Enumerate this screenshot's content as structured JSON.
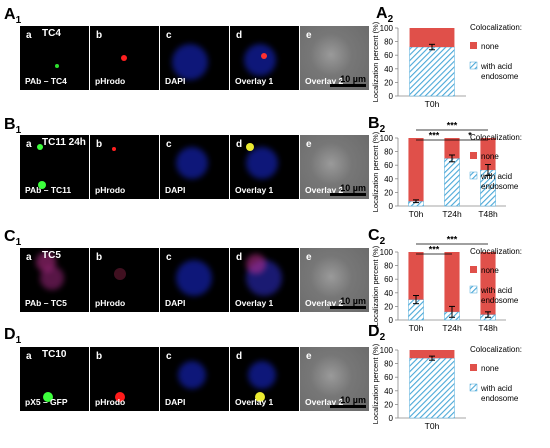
{
  "rows": [
    {
      "letter": "A",
      "sub": "1",
      "target": "TC4",
      "panels": [
        {
          "letter": "a",
          "caption": "PAb – TC4"
        },
        {
          "letter": "b",
          "caption": "pHrodo"
        },
        {
          "letter": "c",
          "caption": "DAPI"
        },
        {
          "letter": "d",
          "caption": "Overlay 1"
        },
        {
          "letter": "e",
          "caption": "Overlay 2",
          "scale": "10 µm"
        }
      ]
    },
    {
      "letter": "B",
      "sub": "1",
      "target": "TC11 24h",
      "panels": [
        {
          "letter": "a",
          "caption": "PAb – TC11"
        },
        {
          "letter": "b",
          "caption": "pHrodo"
        },
        {
          "letter": "c",
          "caption": "DAPI"
        },
        {
          "letter": "d",
          "caption": "Overlay 1"
        },
        {
          "letter": "e",
          "caption": "Overlay 2",
          "scale": "10 µm"
        }
      ]
    },
    {
      "letter": "C",
      "sub": "1",
      "target": "TC5",
      "panels": [
        {
          "letter": "a",
          "caption": "PAb – TC5"
        },
        {
          "letter": "b",
          "caption": "pHrodo"
        },
        {
          "letter": "c",
          "caption": "DAPI"
        },
        {
          "letter": "d",
          "caption": "Overlay 1"
        },
        {
          "letter": "e",
          "caption": "Overlay 2",
          "scale": "10 µm"
        }
      ]
    },
    {
      "letter": "D",
      "sub": "1",
      "target": "TC10",
      "panels": [
        {
          "letter": "a",
          "caption": "pX5 – GFP"
        },
        {
          "letter": "b",
          "caption": "pHrodo"
        },
        {
          "letter": "c",
          "caption": "DAPI"
        },
        {
          "letter": "d",
          "caption": "Overlay 1"
        },
        {
          "letter": "e",
          "caption": "Overlay 2",
          "scale": "10 µm"
        }
      ]
    }
  ],
  "legend": {
    "title": "Colocalization:",
    "none": "none",
    "acid_1": "with acid",
    "acid_2": "endosome"
  },
  "colors": {
    "none": "#e0504a",
    "acid": "#4aa8d8"
  },
  "chart_data": [
    {
      "panel": "A",
      "sub": "2",
      "type": "bar",
      "stacked": true,
      "categories": [
        "T0h"
      ],
      "series": [
        {
          "name": "with acid endosome",
          "values": [
            72
          ]
        },
        {
          "name": "none",
          "values": [
            28
          ]
        }
      ],
      "error": [
        4
      ],
      "ylabel": "Localization percent (%)",
      "ylim": [
        0,
        100
      ],
      "yticks": [
        0,
        20,
        40,
        60,
        80,
        100
      ],
      "significance": []
    },
    {
      "panel": "B",
      "sub": "2",
      "type": "bar",
      "stacked": true,
      "categories": [
        "T0h",
        "T24h",
        "T48h"
      ],
      "series": [
        {
          "name": "with acid endosome",
          "values": [
            7,
            70,
            53
          ]
        },
        {
          "name": "none",
          "values": [
            93,
            30,
            47
          ]
        }
      ],
      "error": [
        2,
        5,
        8
      ],
      "ylabel": "Localization percent (%)",
      "ylim": [
        0,
        100
      ],
      "yticks": [
        0,
        20,
        40,
        60,
        80,
        100
      ],
      "significance": [
        {
          "from": 0,
          "to": 2,
          "label": "***"
        },
        {
          "from": 0,
          "to": 1,
          "label": "***"
        },
        {
          "from": 1,
          "to": 2,
          "label": "*"
        }
      ]
    },
    {
      "panel": "C",
      "sub": "2",
      "type": "bar",
      "stacked": true,
      "categories": [
        "T0h",
        "T24h",
        "T48h"
      ],
      "series": [
        {
          "name": "with acid endosome",
          "values": [
            30,
            12,
            8
          ]
        },
        {
          "name": "none",
          "values": [
            70,
            88,
            92
          ]
        }
      ],
      "error": [
        6,
        8,
        4
      ],
      "ylabel": "Localization percent (%)",
      "ylim": [
        0,
        100
      ],
      "yticks": [
        0,
        20,
        40,
        60,
        80,
        100
      ],
      "significance": [
        {
          "from": 0,
          "to": 2,
          "label": "***"
        },
        {
          "from": 0,
          "to": 1,
          "label": "***"
        }
      ]
    },
    {
      "panel": "D",
      "sub": "2",
      "type": "bar",
      "stacked": true,
      "categories": [
        "T0h"
      ],
      "series": [
        {
          "name": "with acid endosome",
          "values": [
            88
          ]
        },
        {
          "name": "none",
          "values": [
            12
          ]
        }
      ],
      "error": [
        3
      ],
      "ylabel": "Localization percent (%)",
      "ylim": [
        0,
        100
      ],
      "yticks": [
        0,
        20,
        40,
        60,
        80,
        100
      ],
      "significance": []
    }
  ]
}
